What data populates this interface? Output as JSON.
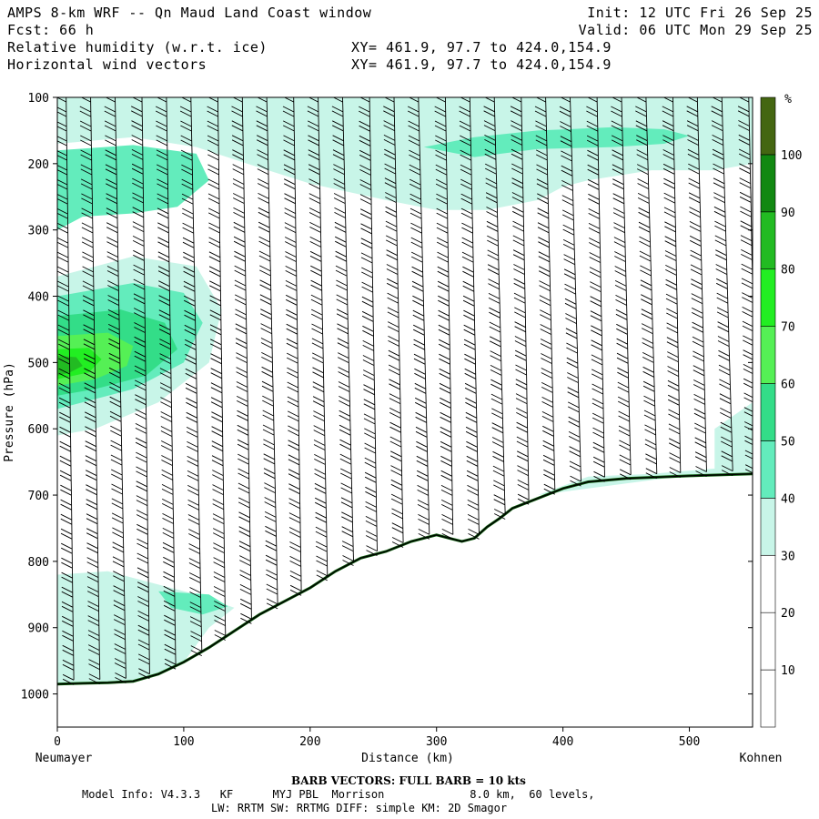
{
  "header": {
    "line1_left": "AMPS 8-km WRF -- Qn Maud Land Coast window",
    "line1_right": "Init: 12 UTC Fri 26 Sep 25",
    "line2_left": "Fcst:   66 h",
    "line2_right": "Valid: 06 UTC Mon 29 Sep 25",
    "line3_left": "Relative humidity (w.r.t. ice)",
    "line3_right": "XY= 461.9, 97.7 to 424.0,154.9",
    "line4_left": "Horizontal wind vectors",
    "line4_right": "XY= 461.9, 97.7 to 424.0,154.9"
  },
  "footer": {
    "barb_note": "BARB VECTORS:  FULL BARB = 10 kts",
    "model_info": "Model Info: V4.3.3   KF      MYJ PBL  Morrison             8.0 km,  60 levels,",
    "physics": "LW: RRTM SW: RRTMG   DIFF: simple KM: 2D Smagor"
  },
  "chart_data": {
    "type": "heatmap",
    "title": "Relative humidity (w.r.t. ice)",
    "overlay": "Horizontal wind vectors (barbs)",
    "xlabel": "Distance (km)",
    "ylabel": "Pressure (hPa)",
    "x_left_label": "Neumayer",
    "x_right_label": "Kohnen",
    "xlim": [
      0,
      550
    ],
    "ylim": [
      1050,
      100
    ],
    "x_ticks": [
      0,
      100,
      200,
      300,
      400,
      500
    ],
    "y_ticks": [
      100,
      200,
      300,
      400,
      500,
      600,
      700,
      800,
      900,
      1000
    ],
    "colorbar": {
      "unit": "%",
      "levels": [
        10,
        20,
        30,
        40,
        50,
        60,
        70,
        80,
        90,
        100
      ],
      "colors": [
        "#ffffff",
        "#ffffff",
        "#ffffff",
        "#c8f5e8",
        "#63ecbc",
        "#33dd88",
        "#55f055",
        "#22ee22",
        "#22bb22",
        "#118811",
        "#446611"
      ]
    },
    "terrain_hpa": [
      [
        0,
        985
      ],
      [
        20,
        984
      ],
      [
        40,
        983
      ],
      [
        60,
        981
      ],
      [
        80,
        970
      ],
      [
        100,
        952
      ],
      [
        120,
        930
      ],
      [
        140,
        905
      ],
      [
        160,
        880
      ],
      [
        180,
        860
      ],
      [
        200,
        840
      ],
      [
        220,
        815
      ],
      [
        240,
        795
      ],
      [
        260,
        785
      ],
      [
        280,
        770
      ],
      [
        300,
        760
      ],
      [
        310,
        765
      ],
      [
        320,
        770
      ],
      [
        330,
        765
      ],
      [
        340,
        748
      ],
      [
        350,
        735
      ],
      [
        360,
        720
      ],
      [
        380,
        705
      ],
      [
        400,
        690
      ],
      [
        420,
        680
      ],
      [
        450,
        675
      ],
      [
        500,
        671
      ],
      [
        550,
        668
      ]
    ],
    "rh_regions": [
      {
        "level": 30,
        "points": [
          [
            0,
            170
          ],
          [
            60,
            160
          ],
          [
            110,
            175
          ],
          [
            150,
            200
          ],
          [
            200,
            230
          ],
          [
            260,
            255
          ],
          [
            300,
            270
          ],
          [
            340,
            270
          ],
          [
            380,
            255
          ],
          [
            400,
            235
          ],
          [
            420,
            225
          ],
          [
            470,
            210
          ],
          [
            520,
            210
          ],
          [
            550,
            200
          ],
          [
            550,
            100
          ],
          [
            0,
            100
          ]
        ]
      },
      {
        "level": 40,
        "points": [
          [
            0,
            180
          ],
          [
            60,
            172
          ],
          [
            110,
            185
          ],
          [
            120,
            225
          ],
          [
            95,
            265
          ],
          [
            60,
            275
          ],
          [
            20,
            280
          ],
          [
            0,
            300
          ]
        ]
      },
      {
        "level": 40,
        "points": [
          [
            290,
            175
          ],
          [
            330,
            160
          ],
          [
            380,
            150
          ],
          [
            440,
            145
          ],
          [
            480,
            148
          ],
          [
            500,
            158
          ],
          [
            480,
            170
          ],
          [
            440,
            175
          ],
          [
            380,
            178
          ],
          [
            330,
            190
          ]
        ]
      },
      {
        "level": 30,
        "points": [
          [
            0,
            370
          ],
          [
            60,
            340
          ],
          [
            110,
            355
          ],
          [
            130,
            420
          ],
          [
            120,
            500
          ],
          [
            80,
            560
          ],
          [
            30,
            600
          ],
          [
            0,
            610
          ]
        ]
      },
      {
        "level": 40,
        "points": [
          [
            0,
            400
          ],
          [
            60,
            380
          ],
          [
            100,
            395
          ],
          [
            115,
            440
          ],
          [
            100,
            500
          ],
          [
            60,
            540
          ],
          [
            20,
            560
          ],
          [
            0,
            570
          ]
        ]
      },
      {
        "level": 50,
        "points": [
          [
            0,
            430
          ],
          [
            50,
            420
          ],
          [
            85,
            440
          ],
          [
            95,
            480
          ],
          [
            70,
            520
          ],
          [
            30,
            540
          ],
          [
            0,
            550
          ]
        ]
      },
      {
        "level": 60,
        "points": [
          [
            0,
            460
          ],
          [
            40,
            455
          ],
          [
            60,
            475
          ],
          [
            55,
            505
          ],
          [
            30,
            525
          ],
          [
            0,
            535
          ]
        ]
      },
      {
        "level": 70,
        "points": [
          [
            0,
            480
          ],
          [
            25,
            478
          ],
          [
            35,
            495
          ],
          [
            25,
            515
          ],
          [
            0,
            525
          ]
        ]
      },
      {
        "level": 80,
        "points": [
          [
            0,
            490
          ],
          [
            15,
            492
          ],
          [
            20,
            505
          ],
          [
            10,
            515
          ],
          [
            0,
            520
          ]
        ]
      },
      {
        "level": 30,
        "points": [
          [
            0,
            820
          ],
          [
            40,
            815
          ],
          [
            70,
            830
          ],
          [
            110,
            850
          ],
          [
            140,
            870
          ],
          [
            120,
            900
          ],
          [
            100,
            952
          ],
          [
            80,
            970
          ],
          [
            60,
            981
          ],
          [
            0,
            985
          ]
        ]
      },
      {
        "level": 40,
        "points": [
          [
            80,
            845
          ],
          [
            120,
            850
          ],
          [
            135,
            868
          ],
          [
            115,
            880
          ],
          [
            90,
            870
          ]
        ]
      },
      {
        "level": 30,
        "points": [
          [
            380,
            700
          ],
          [
            420,
            690
          ],
          [
            480,
            675
          ],
          [
            550,
            668
          ],
          [
            550,
            650
          ],
          [
            520,
            660
          ],
          [
            470,
            668
          ],
          [
            420,
            672
          ]
        ]
      },
      {
        "level": 30,
        "points": [
          [
            520,
            600
          ],
          [
            550,
            560
          ],
          [
            550,
            668
          ],
          [
            520,
            670
          ]
        ]
      }
    ],
    "barb_columns_km": [
      10,
      30,
      50,
      70,
      90,
      110,
      130,
      150,
      170,
      190,
      210,
      230,
      250,
      270,
      290,
      310,
      330,
      350,
      370,
      390,
      410,
      430,
      450,
      470,
      490,
      510,
      530,
      550
    ]
  }
}
